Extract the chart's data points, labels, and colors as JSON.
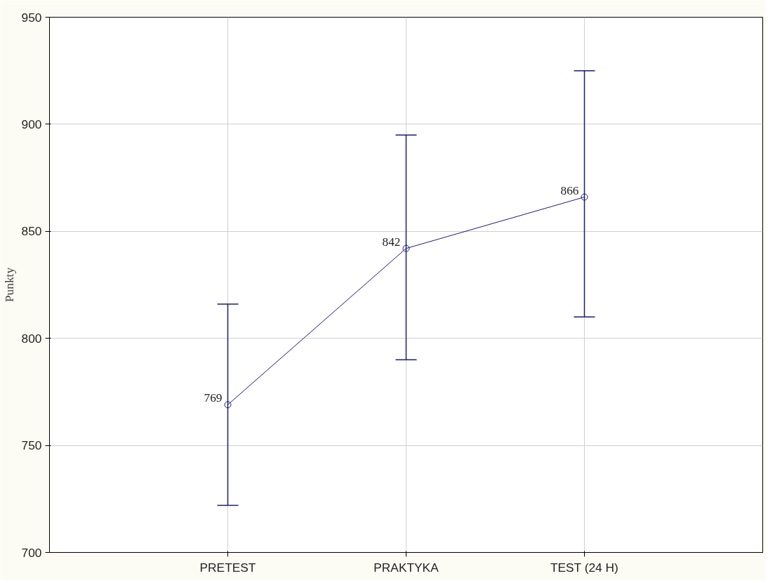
{
  "chart_data": {
    "type": "line",
    "ylabel": "Punkty",
    "categories": [
      "PRETEST",
      "PRAKTYKA",
      "TEST (24 H)"
    ],
    "series": [
      {
        "color": "#1c1c78",
        "values": [
          769,
          842,
          866
        ],
        "errors": [
          [
            722,
            816
          ],
          [
            790,
            895
          ],
          [
            810,
            925
          ]
        ]
      }
    ],
    "ylim": [
      700,
      950
    ],
    "yticks": [
      700,
      750,
      800,
      850,
      900,
      950
    ],
    "grid": true,
    "marker": "circle",
    "line_style": "solid",
    "data_labels": true
  }
}
